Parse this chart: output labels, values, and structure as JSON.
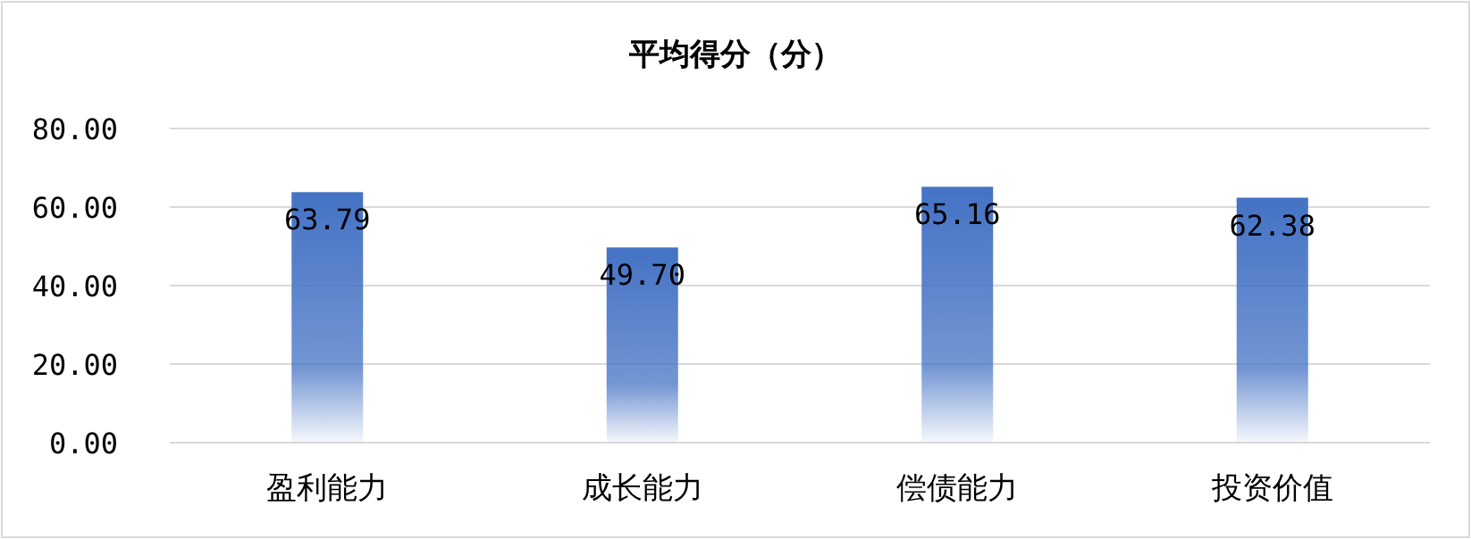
{
  "chart_data": {
    "type": "bar",
    "title": "平均得分（分）",
    "categories": [
      "盈利能力",
      "成长能力",
      "偿债能力",
      "投资价值"
    ],
    "values": [
      63.79,
      49.7,
      65.16,
      62.38
    ],
    "value_labels": [
      "63.79",
      "49.70",
      "65.16",
      "62.38"
    ],
    "color": "#4472c4",
    "ylim": [
      0,
      80
    ],
    "yticks": [
      {
        "value": 0,
        "label": "0.00"
      },
      {
        "value": 20,
        "label": "20.00"
      },
      {
        "value": 40,
        "label": "40.00"
      },
      {
        "value": 60,
        "label": "60.00"
      },
      {
        "value": 80,
        "label": "80.00"
      }
    ],
    "grid": "y"
  }
}
